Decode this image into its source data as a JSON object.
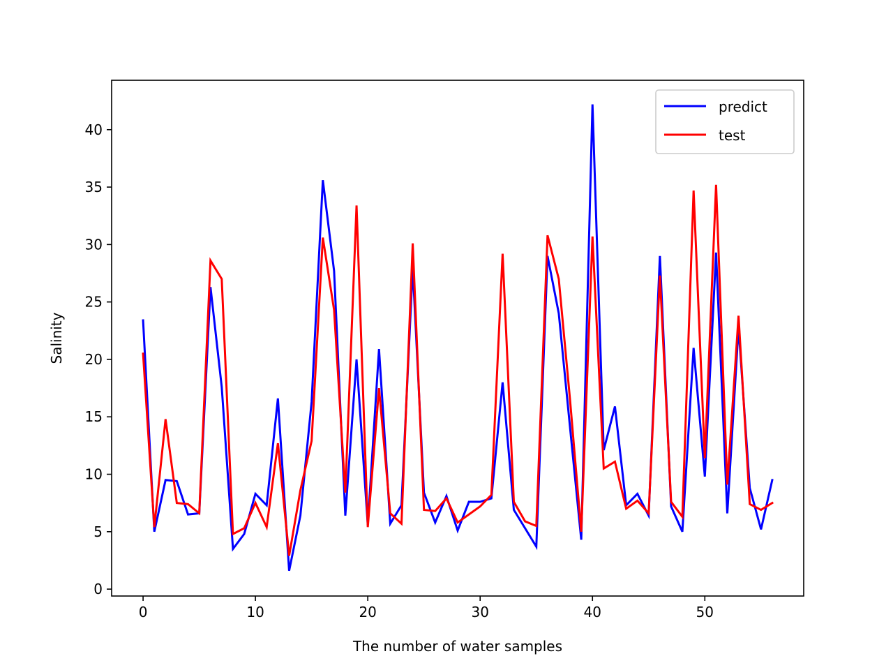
{
  "chart_data": {
    "type": "line",
    "title": "",
    "xlabel": "The number of water samples",
    "ylabel": "Salinity",
    "xlim": [
      -2.8,
      58.8
    ],
    "ylim": [
      -0.6,
      44.3
    ],
    "xticks": [
      0,
      10,
      20,
      30,
      40,
      50
    ],
    "yticks": [
      0,
      5,
      10,
      15,
      20,
      25,
      30,
      35,
      40
    ],
    "grid": false,
    "legend_position": "top-right",
    "x": [
      0,
      1,
      2,
      3,
      4,
      5,
      6,
      7,
      8,
      9,
      10,
      11,
      12,
      13,
      14,
      15,
      16,
      17,
      18,
      19,
      20,
      21,
      22,
      23,
      24,
      25,
      26,
      27,
      28,
      29,
      30,
      31,
      32,
      33,
      34,
      35,
      36,
      37,
      38,
      39,
      40,
      41,
      42,
      43,
      44,
      45,
      46,
      47,
      48,
      49,
      50,
      51,
      52,
      53,
      54,
      55,
      56
    ],
    "series": [
      {
        "name": "predict",
        "color": "#0000ff",
        "values": [
          23.4,
          5.0,
          9.5,
          9.4,
          6.5,
          6.6,
          26.3,
          17.6,
          3.5,
          4.8,
          8.3,
          7.3,
          16.6,
          1.6,
          6.4,
          16.3,
          35.6,
          27.7,
          6.4,
          20.0,
          5.6,
          20.9,
          5.7,
          7.3,
          28.0,
          8.4,
          5.8,
          8.1,
          5.1,
          7.6,
          7.6,
          7.9,
          18.0,
          6.9,
          5.3,
          3.7,
          29.0,
          24.0,
          14.1,
          4.3,
          42.2,
          12.1,
          15.9,
          7.3,
          8.3,
          6.4,
          29.0,
          7.2,
          5.0,
          21.0,
          9.8,
          29.3,
          6.6,
          22.8,
          8.8,
          5.2,
          9.5
        ]
      },
      {
        "name": "test",
        "color": "#ff0000",
        "values": [
          20.5,
          5.4,
          14.8,
          7.5,
          7.4,
          6.6,
          28.6,
          27.0,
          4.8,
          5.3,
          7.5,
          5.4,
          12.7,
          2.9,
          8.6,
          12.9,
          30.6,
          24.3,
          8.4,
          33.4,
          5.4,
          17.5,
          6.6,
          5.7,
          30.1,
          6.9,
          6.8,
          7.9,
          5.8,
          6.5,
          7.2,
          8.2,
          29.2,
          7.6,
          5.9,
          5.5,
          30.8,
          27.0,
          16.5,
          5.0,
          30.7,
          10.5,
          11.1,
          7.0,
          7.7,
          6.6,
          27.3,
          7.6,
          6.3,
          34.7,
          11.4,
          35.2,
          9.1,
          23.8,
          7.4,
          6.9,
          7.5
        ]
      }
    ]
  }
}
